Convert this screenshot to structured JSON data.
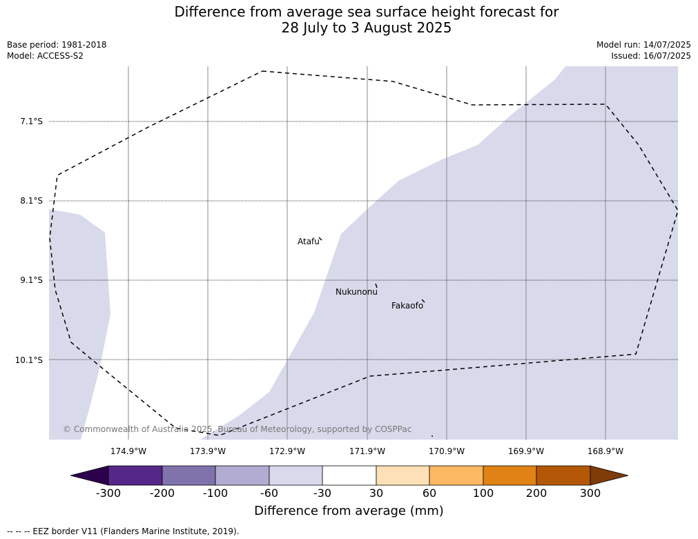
{
  "title_line1": "Difference from average sea surface height forecast for",
  "title_line2": "28 July to 3 August 2025",
  "base_period": "Base period: 1981-2018",
  "model": "Model: ACCESS-S2",
  "model_run": "Model run: 14/07/2025",
  "issued": "Issued: 16/07/2025",
  "lat_labels": [
    "7.1°S",
    "8.1°S",
    "9.1°S",
    "10.1°S"
  ],
  "lon_labels": [
    "174.9°W",
    "173.9°W",
    "172.9°W",
    "171.9°W",
    "170.9°W",
    "169.9°W",
    "168.9°W"
  ],
  "places": {
    "atafu": "Atafu",
    "nukunonu": "Nukunonu",
    "fakaofo": "Fakaofo"
  },
  "copyright": "© Commonwealth of Australia 2025, Bureau of Meteorology, supported by COSPPac",
  "colorbar": {
    "title": "Difference from average (mm)",
    "ticks": [
      "-300",
      "-200",
      "-100",
      "-60",
      "-30",
      "30",
      "60",
      "100",
      "200",
      "300"
    ],
    "colors": {
      "below_min": "#2d004b",
      "c1": "#542788",
      "c2": "#8073ac",
      "c3": "#b2abd2",
      "c4": "#d8daeb",
      "c5": "#ffffff",
      "c6": "#fee0b6",
      "c7": "#fdb863",
      "c8": "#e08214",
      "c9": "#b35806",
      "above_max": "#7f3b08"
    }
  },
  "map_fill_color": "#d8daeb",
  "footnote": "-- -- -- EEZ border V11 (Flanders Marine Institute, 2019)."
}
